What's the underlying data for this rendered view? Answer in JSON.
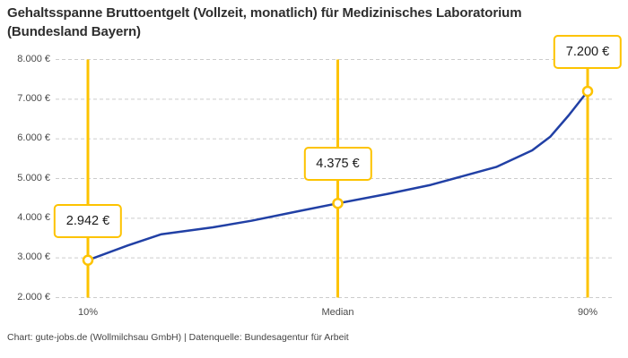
{
  "title": "Gehaltsspanne Bruttoentgelt (Vollzeit, monatlich) für Medizinisches Laboratorium (Bundesland Bayern)",
  "footer": "Chart: gute-jobs.de (Wollmilchsau GmbH) | Datenquelle: Bundesagentur für Arbeit",
  "colors": {
    "accent_yellow": "#fdc300",
    "line_blue": "#2140a5",
    "grid_gray": "#cccccc",
    "title_text": "#2e2e2e",
    "tick_text": "#4a4a4a",
    "value_text": "#1a1a1a"
  },
  "chart_data": {
    "type": "line",
    "title": "Gehaltsspanne Bruttoentgelt (Vollzeit, monatlich) für Medizinisches Laboratorium (Bundesland Bayern)",
    "xlabel": "",
    "ylabel": "",
    "categories": [
      "10%",
      "Median",
      "90%"
    ],
    "points": [
      {
        "category": "10%",
        "value": 2942,
        "label": "2.942 €"
      },
      {
        "category": "Median",
        "value": 4375,
        "label": "4.375 €"
      },
      {
        "category": "90%",
        "value": 7200,
        "label": "7.200 €"
      }
    ],
    "y_ticks": [
      {
        "value": 8000,
        "label": "8.000 €"
      },
      {
        "value": 7000,
        "label": "7.000 €"
      },
      {
        "value": 6000,
        "label": "6.000 €"
      },
      {
        "value": 5000,
        "label": "5.000 €"
      },
      {
        "value": 4000,
        "label": "4.000 €"
      },
      {
        "value": 3000,
        "label": "3.000 €"
      },
      {
        "value": 2000,
        "label": "2.000 €"
      }
    ],
    "ylim": [
      2000,
      8000
    ],
    "grid": "horizontal-dashed",
    "legend": "none",
    "curve_points": [
      [
        0.0,
        2942
      ],
      [
        0.08,
        3315
      ],
      [
        0.147,
        3597
      ],
      [
        0.25,
        3770
      ],
      [
        0.327,
        3935
      ],
      [
        0.42,
        4175
      ],
      [
        0.5,
        4375
      ],
      [
        0.6,
        4615
      ],
      [
        0.686,
        4840
      ],
      [
        0.75,
        5060
      ],
      [
        0.817,
        5290
      ],
      [
        0.889,
        5710
      ],
      [
        0.925,
        6050
      ],
      [
        0.962,
        6590
      ],
      [
        1.0,
        7200
      ]
    ]
  }
}
